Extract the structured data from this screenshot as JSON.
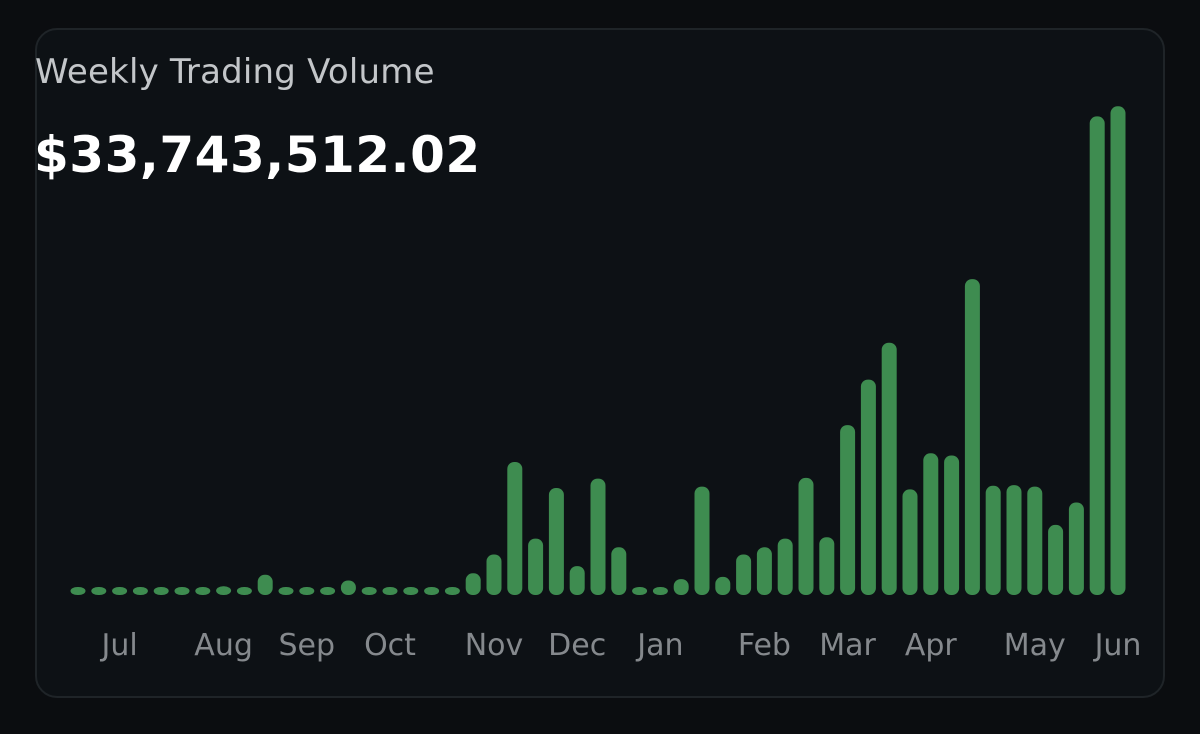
{
  "card": {
    "title": "Weekly Trading Volume",
    "value": "$33,743,512.02"
  },
  "colors": {
    "background": "#0b0d10",
    "card": "#0d1115",
    "bar": "#3e8c50",
    "tick_label": "#85898d",
    "title": "#c3c6c9",
    "value": "#ffffff"
  },
  "chart_data": {
    "type": "bar",
    "title": "Weekly Trading Volume",
    "xlabel": "",
    "ylabel": "",
    "grid": false,
    "legend": "none",
    "ylim": [
      0,
      6750000
    ],
    "x_tick_labels": [
      "Jul",
      "Aug",
      "Sep",
      "Oct",
      "Nov",
      "Dec",
      "Jan",
      "Feb",
      "Mar",
      "Apr",
      "May",
      "Jun"
    ],
    "x_tick_positions": [
      2,
      7,
      11,
      15,
      20,
      24,
      28,
      33,
      37,
      41,
      46,
      50
    ],
    "values": [
      60000,
      100000,
      50000,
      50000,
      50000,
      50000,
      50000,
      120000,
      100000,
      280000,
      100000,
      100000,
      100000,
      200000,
      100000,
      100000,
      100000,
      100000,
      60000,
      300000,
      560000,
      1840000,
      780000,
      1480000,
      400000,
      1610000,
      660000,
      100000,
      100000,
      220000,
      1500000,
      250000,
      560000,
      660000,
      780000,
      1620000,
      800000,
      2350000,
      2980000,
      3490000,
      1460000,
      1960000,
      1930000,
      4370000,
      1510000,
      1520000,
      1500000,
      970000,
      1280000,
      6620000,
      6760000
    ]
  }
}
